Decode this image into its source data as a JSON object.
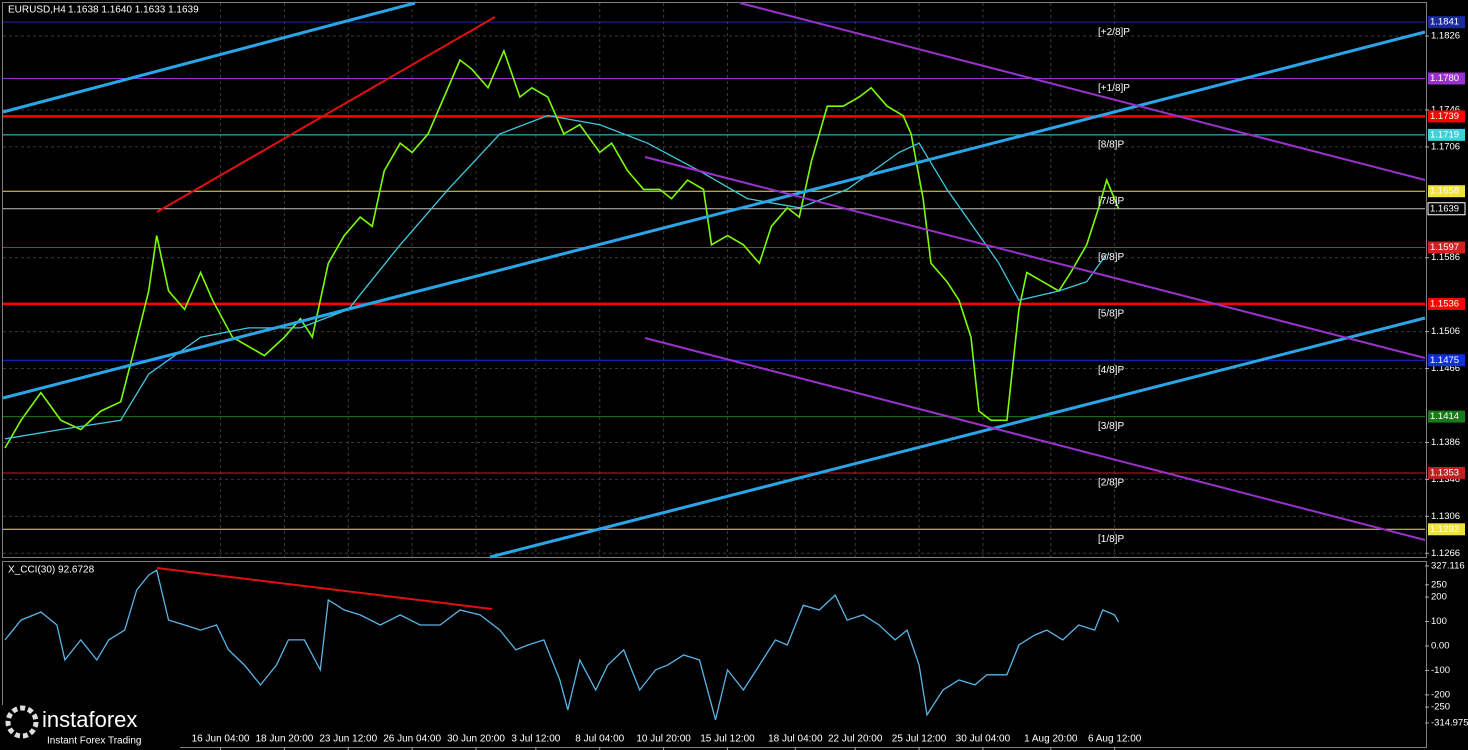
{
  "chart_data": [
    {
      "type": "line",
      "title": "EURUSD,H4",
      "subtitle": "1.1638 1.1640 1.1633 1.1639",
      "xlim": [
        -1.25,
        355
      ],
      "ylim": [
        1.1262,
        1.1865
      ],
      "grid": true,
      "yticks": [
        1.1826,
        1.1746,
        1.1706,
        1.1586,
        1.1506,
        1.1466,
        1.1386,
        1.1346,
        1.1306,
        1.1266
      ],
      "xticks": [
        {
          "value": 54,
          "label": "16 Jun 04:00"
        },
        {
          "value": 70,
          "label": "18 Jun 20:00"
        },
        {
          "value": 86,
          "label": "23 Jun 12:00"
        },
        {
          "value": 102,
          "label": "26 Jun 04:00"
        },
        {
          "value": 118,
          "label": "30 Jun 20:00"
        },
        {
          "value": 133,
          "label": "3 Jul 12:00"
        },
        {
          "value": 149,
          "label": "8 Jul 04:00"
        },
        {
          "value": 165,
          "label": "10 Jul 20:00"
        },
        {
          "value": 181,
          "label": "15 Jul 12:00"
        },
        {
          "value": 198,
          "label": "18 Jul 04:00"
        },
        {
          "value": 213,
          "label": "22 Jul 20:00"
        },
        {
          "value": 229,
          "label": "25 Jul 12:00"
        },
        {
          "value": 245,
          "label": "30 Jul 04:00"
        },
        {
          "value": 262,
          "label": "1 Aug 20:00"
        },
        {
          "value": 278,
          "label": "6 Aug 12:00"
        }
      ],
      "levels": [
        {
          "value": 1.1841,
          "label": "1.1841",
          "name": "[+2/8]P",
          "color": "#1a2a9a"
        },
        {
          "value": 1.178,
          "label": "1.1780",
          "name": "[+1/8]P",
          "color": "#9932cc"
        },
        {
          "value": 1.1739,
          "label": "1.1739",
          "color": "#ff0000"
        },
        {
          "value": 1.1719,
          "label": "1.1719",
          "name": "[8/8]P",
          "color": "#40d0d8"
        },
        {
          "value": 1.1658,
          "label": "1.1658",
          "name": "[7/8]P",
          "color": "#f0e040"
        },
        {
          "value": 1.1639,
          "label": "1.1639",
          "color": "#c0c0c0"
        },
        {
          "value": 1.1597,
          "label": "1.1597",
          "name": "[6/8]P",
          "color": "#d02020"
        },
        {
          "value": 1.1536,
          "label": "1.1536",
          "name": "[5/8]P",
          "color": "#ff0000"
        },
        {
          "value": 1.1475,
          "label": "1.1475",
          "name": "[4/8]P",
          "color": "#1030e0"
        },
        {
          "value": 1.1414,
          "label": "1.1414",
          "name": "[3/8]P",
          "color": "#1a7a1a"
        },
        {
          "value": 1.1353,
          "label": "1.1353",
          "name": "[2/8]P",
          "color": "#c02020"
        },
        {
          "value": 1.1292,
          "label": "1.1292",
          "name": "[1/8]P",
          "color": "#f0e040"
        }
      ],
      "series": [
        {
          "color": "#7cfc00",
          "x": [
            0,
            4,
            9,
            14,
            19,
            24,
            29,
            32,
            36,
            38,
            41,
            45,
            49,
            52,
            57,
            61,
            65,
            70,
            74,
            77,
            81,
            85,
            89,
            92,
            95,
            99,
            102,
            106,
            110,
            114,
            117,
            121,
            125,
            129,
            132,
            136,
            140,
            144,
            149,
            152,
            156,
            160,
            164,
            167,
            171,
            175,
            177,
            181,
            185,
            189,
            192,
            196,
            199,
            202,
            206,
            210,
            214,
            217,
            221,
            225,
            227,
            230,
            232,
            236,
            239,
            242,
            244,
            247,
            251,
            254,
            256,
            260,
            264,
            267,
            271,
            274,
            276,
            279
          ],
          "values": [
            1.138,
            1.141,
            1.144,
            1.141,
            1.14,
            1.142,
            1.143,
            1.148,
            1.155,
            1.161,
            1.155,
            1.153,
            1.157,
            1.154,
            1.15,
            1.149,
            1.148,
            1.15,
            1.152,
            1.15,
            1.158,
            1.161,
            1.163,
            1.162,
            1.168,
            1.171,
            1.17,
            1.172,
            1.176,
            1.18,
            1.179,
            1.177,
            1.181,
            1.176,
            1.177,
            1.176,
            1.172,
            1.173,
            1.17,
            1.171,
            1.168,
            1.166,
            1.166,
            1.165,
            1.167,
            1.166,
            1.16,
            1.161,
            1.16,
            1.158,
            1.162,
            1.164,
            1.163,
            1.169,
            1.175,
            1.175,
            1.176,
            1.177,
            1.175,
            1.174,
            1.172,
            1.165,
            1.158,
            1.156,
            1.154,
            1.15,
            1.142,
            1.141,
            1.141,
            1.153,
            1.157,
            1.156,
            1.155,
            1.157,
            1.16,
            1.164,
            1.167,
            1.1639
          ]
        },
        {
          "color": "#40c8e0",
          "x": [
            0,
            14,
            29,
            36,
            49,
            61,
            74,
            86,
            99,
            111,
            124,
            136,
            149,
            161,
            174,
            186,
            199,
            211,
            224,
            229,
            236,
            249,
            254,
            264,
            271,
            276
          ],
          "values": [
            1.139,
            1.14,
            1.141,
            1.146,
            1.15,
            1.151,
            1.151,
            1.153,
            1.16,
            1.166,
            1.172,
            1.174,
            1.173,
            1.171,
            1.168,
            1.165,
            1.164,
            1.166,
            1.17,
            1.171,
            1.166,
            1.158,
            1.154,
            1.155,
            1.156,
            1.159
          ]
        }
      ]
    },
    {
      "type": "line",
      "title": "X_CCI(30) 92.6728",
      "xlim": [
        -1.25,
        355
      ],
      "ylim": [
        -314.975,
        327.116
      ],
      "yticks": [
        327.116,
        250,
        200,
        100,
        {
          "value": 0,
          "label": "0.00"
        },
        -100,
        -200,
        -250,
        -314.975
      ],
      "series": [
        {
          "color": "#5ab4e6",
          "x": [
            0,
            4,
            9,
            13,
            15,
            19,
            23,
            26,
            30,
            33,
            36,
            38,
            41,
            45,
            49,
            53,
            56,
            60,
            64,
            68,
            71,
            75,
            79,
            81,
            85,
            89,
            94,
            99,
            104,
            109,
            114,
            119,
            124,
            128,
            131,
            135,
            139,
            141,
            144,
            148,
            151,
            155,
            159,
            163,
            166,
            170,
            174,
            178,
            181,
            185,
            189,
            193,
            196,
            200,
            204,
            208,
            211,
            215,
            219,
            223,
            226,
            229,
            231,
            235,
            239,
            243,
            246,
            251,
            254,
            258,
            261,
            265,
            269,
            273,
            275,
            278,
            279
          ],
          "values": [
            25,
            106,
            139,
            86,
            -57,
            25,
            -57,
            25,
            65,
            229,
            290,
            310,
            106,
            86,
            65,
            86,
            -16,
            -78,
            -159,
            -78,
            25,
            25,
            -98,
            188,
            147,
            127,
            86,
            127,
            86,
            86,
            147,
            127,
            65,
            -16,
            4,
            25,
            -139,
            -261,
            -57,
            -180,
            -78,
            -16,
            -180,
            -98,
            -78,
            -37,
            -57,
            -302,
            -98,
            -180,
            -78,
            25,
            4,
            167,
            147,
            208,
            106,
            127,
            86,
            25,
            65,
            -78,
            -282,
            -180,
            -139,
            -159,
            -118,
            -118,
            4,
            45,
            65,
            25,
            86,
            65,
            147,
            127,
            98
          ]
        }
      ]
    }
  ],
  "logo": {
    "brand": "instaforex",
    "tagline": "Instant Forex Trading"
  }
}
